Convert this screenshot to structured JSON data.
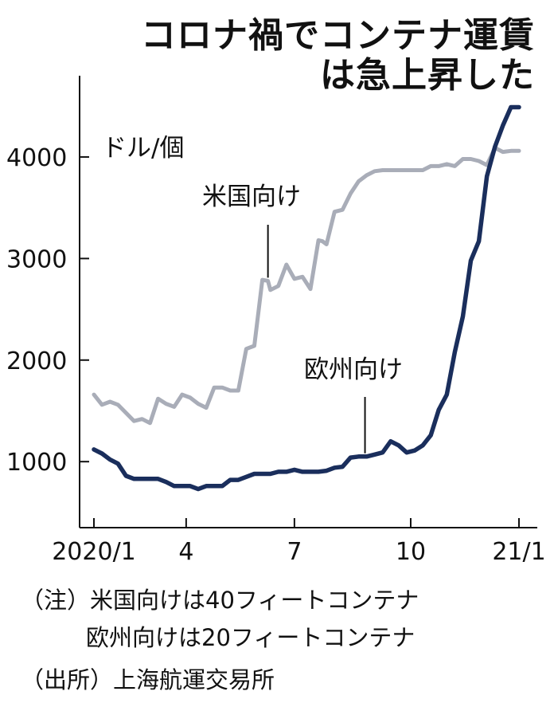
{
  "title": [
    "コロナ禍でコンテナ運賃",
    "は急上昇した"
  ],
  "notes": [
    "（注）米国向けは40フィートコンテナ",
    "欧州向けは20フィートコンテナ",
    "（出所）上海航運交易所"
  ],
  "chart_data": {
    "type": "line",
    "unit": "ドル/個",
    "x_tick_labels": [
      "2020/1",
      "4",
      "7",
      "10",
      "21/1"
    ],
    "ylim": [
      350,
      4800
    ],
    "y_ticks": [
      1000,
      2000,
      3000,
      4000
    ],
    "y_tick_labels": [
      "1000",
      "2000",
      "3000",
      "4000"
    ],
    "x_range_weeks": [
      0,
      53
    ],
    "x_tick_weeks": [
      0,
      11.5,
      25,
      39.5,
      53
    ],
    "series": [
      {
        "name": "米国向け",
        "color": "#a9adb8",
        "label_at_week": 21.7,
        "x": [
          0,
          1,
          2,
          3,
          4,
          5,
          6,
          7,
          8,
          9,
          10,
          11,
          12,
          13,
          14,
          15,
          16,
          17,
          18,
          19,
          20,
          21,
          21.7,
          22,
          23,
          24,
          25,
          26,
          27,
          28,
          28.5,
          29,
          30,
          31,
          32,
          33,
          34,
          35,
          36,
          37,
          38,
          39,
          40,
          41,
          42,
          43,
          44,
          45,
          46,
          47,
          48,
          49,
          50,
          51,
          52,
          53
        ],
        "y": [
          1660,
          1560,
          1590,
          1560,
          1480,
          1400,
          1420,
          1380,
          1620,
          1570,
          1540,
          1660,
          1630,
          1570,
          1530,
          1730,
          1730,
          1700,
          1700,
          2110,
          2140,
          2790,
          2780,
          2690,
          2730,
          2940,
          2800,
          2820,
          2700,
          3180,
          3170,
          3140,
          3460,
          3480,
          3640,
          3760,
          3820,
          3860,
          3870,
          3870,
          3870,
          3870,
          3870,
          3870,
          3910,
          3910,
          3930,
          3910,
          3980,
          3980,
          3960,
          3920,
          4090,
          4050,
          4060,
          4060
        ]
      },
      {
        "name": "欧州向け",
        "color": "#1a2e5c",
        "label_at_week": 33.8,
        "x": [
          0,
          1,
          2,
          3,
          4,
          5,
          6,
          7,
          8,
          9,
          10,
          11,
          12,
          13,
          14,
          15,
          16,
          17,
          18,
          19,
          20,
          21,
          22,
          23,
          24,
          25,
          26,
          27,
          28,
          29,
          30,
          31,
          32,
          33,
          33.8,
          34,
          35,
          36,
          37,
          38,
          39,
          40,
          41,
          42,
          43,
          44,
          45,
          46,
          47,
          48,
          49,
          50,
          51,
          52,
          53
        ],
        "y": [
          1120,
          1080,
          1020,
          980,
          860,
          830,
          830,
          830,
          830,
          800,
          760,
          760,
          760,
          730,
          760,
          760,
          760,
          820,
          820,
          850,
          880,
          880,
          880,
          900,
          900,
          920,
          900,
          900,
          900,
          910,
          940,
          950,
          1040,
          1050,
          1050,
          1050,
          1070,
          1090,
          1200,
          1160,
          1090,
          1110,
          1160,
          1260,
          1510,
          1660,
          2080,
          2430,
          2980,
          3170,
          3810,
          4100,
          4310,
          4490,
          4490
        ]
      }
    ]
  }
}
